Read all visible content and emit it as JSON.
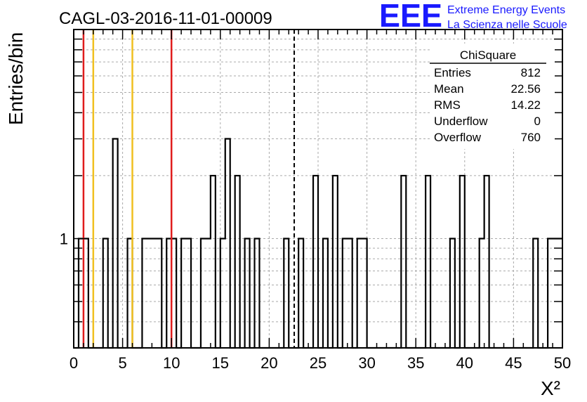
{
  "colors": {
    "hist": "#000000",
    "grid": "#aaaaaa",
    "brand": "#1a1aff",
    "red_line": "#e01c1c",
    "yellow_line": "#f0c020",
    "mean_line": "#000000"
  },
  "header": {
    "run_title": "CAGL-03-2016-11-01-00009",
    "brand_logo": "EEE",
    "brand_line1": "Extreme Energy Events",
    "brand_line2": "La Scienza nelle Scuole"
  },
  "stats_box": {
    "title": "ChiSquare",
    "rows": [
      {
        "label": "Entries",
        "value": "812"
      },
      {
        "label": "Mean",
        "value": "22.56"
      },
      {
        "label": "RMS",
        "value": "14.22"
      },
      {
        "label": "Underflow",
        "value": "0"
      },
      {
        "label": "Overflow",
        "value": "760"
      }
    ]
  },
  "chart_data": {
    "type": "bar",
    "histogram_style": "step",
    "title": "CAGL-03-2016-11-01-00009",
    "xlabel": "X²",
    "ylabel": "Entries/bin",
    "xlim": [
      0,
      50
    ],
    "ylog": true,
    "ylim": [
      0.3,
      10
    ],
    "bin_width": 0.5,
    "grid": true,
    "x_ticks": [
      0,
      5,
      10,
      15,
      20,
      25,
      30,
      35,
      40,
      45,
      50
    ],
    "x_tick_labels": [
      "0",
      "5",
      "10",
      "15",
      "20",
      "25",
      "30",
      "35",
      "40",
      "45",
      "50"
    ],
    "y_ticks": [
      1
    ],
    "y_tick_labels": [
      "1"
    ],
    "bins": [
      {
        "x": 0.5,
        "count": 1
      },
      {
        "x": 1.0,
        "count": 1
      },
      {
        "x": 3.0,
        "count": 1
      },
      {
        "x": 4.0,
        "count": 3
      },
      {
        "x": 5.5,
        "count": 1
      },
      {
        "x": 7.0,
        "count": 1
      },
      {
        "x": 7.5,
        "count": 1
      },
      {
        "x": 8.0,
        "count": 1
      },
      {
        "x": 8.5,
        "count": 1
      },
      {
        "x": 9.5,
        "count": 1
      },
      {
        "x": 10.0,
        "count": 1
      },
      {
        "x": 11.0,
        "count": 1
      },
      {
        "x": 11.5,
        "count": 1
      },
      {
        "x": 13.0,
        "count": 1
      },
      {
        "x": 13.5,
        "count": 1
      },
      {
        "x": 14.0,
        "count": 2
      },
      {
        "x": 15.0,
        "count": 1
      },
      {
        "x": 15.5,
        "count": 3
      },
      {
        "x": 16.5,
        "count": 2
      },
      {
        "x": 17.5,
        "count": 1
      },
      {
        "x": 18.5,
        "count": 1
      },
      {
        "x": 21.5,
        "count": 1
      },
      {
        "x": 23.0,
        "count": 1
      },
      {
        "x": 24.5,
        "count": 2
      },
      {
        "x": 25.5,
        "count": 1
      },
      {
        "x": 26.5,
        "count": 2
      },
      {
        "x": 27.5,
        "count": 1
      },
      {
        "x": 28.0,
        "count": 1
      },
      {
        "x": 29.0,
        "count": 1
      },
      {
        "x": 29.5,
        "count": 1
      },
      {
        "x": 33.5,
        "count": 2
      },
      {
        "x": 36.0,
        "count": 2
      },
      {
        "x": 38.5,
        "count": 1
      },
      {
        "x": 39.5,
        "count": 2
      },
      {
        "x": 41.5,
        "count": 1
      },
      {
        "x": 42.0,
        "count": 2
      },
      {
        "x": 47.0,
        "count": 1
      },
      {
        "x": 48.5,
        "count": 1
      },
      {
        "x": 49.0,
        "count": 1
      },
      {
        "x": 49.5,
        "count": 1
      }
    ],
    "vertical_lines": [
      {
        "x": 1,
        "color": "red"
      },
      {
        "x": 10,
        "color": "red"
      },
      {
        "x": 2,
        "color": "yellow"
      },
      {
        "x": 6,
        "color": "yellow"
      },
      {
        "x": 22.56,
        "color": "black",
        "style": "dashed",
        "meaning": "mean"
      }
    ]
  }
}
